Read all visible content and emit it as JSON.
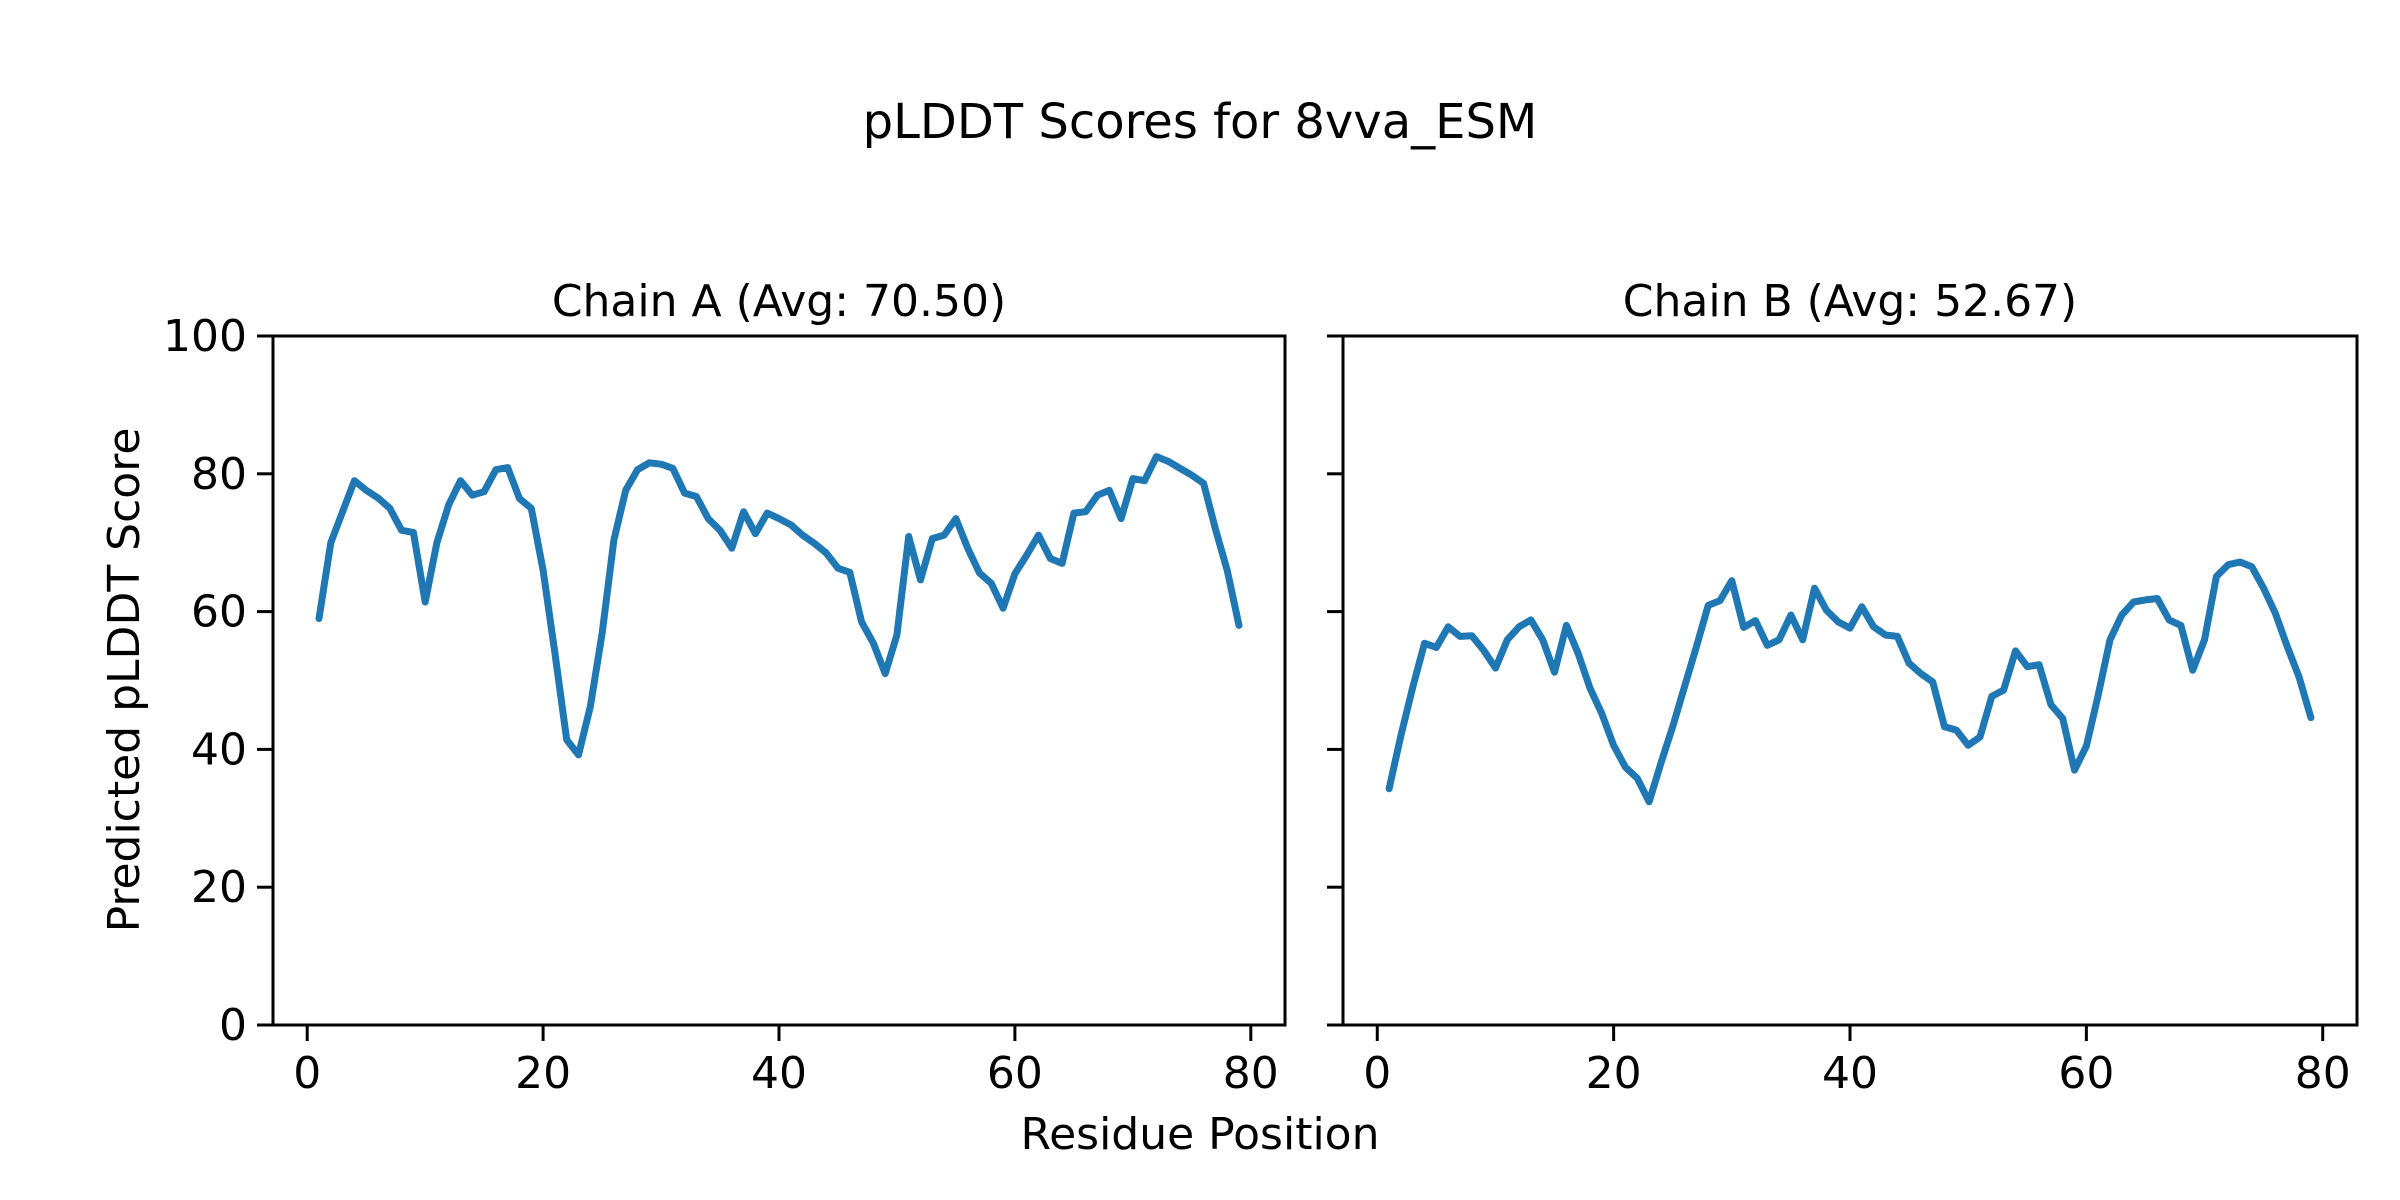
{
  "figure": {
    "title": "pLDDT Scores for 8vva_ESM",
    "xlabel": "Residue Position",
    "ylabel": "Predicted pLDDT Score",
    "background_color": "#ffffff",
    "text_color": "#000000"
  },
  "chart_data": [
    {
      "type": "line",
      "title": "Chain A (Avg: 70.50)",
      "chain": "A",
      "avg_plddt": 70.5,
      "line_color": "#1f77b4",
      "x_start": 1,
      "values": [
        59,
        70,
        74.5,
        79,
        77.6,
        76.5,
        75,
        71.8,
        71.5,
        61.4,
        70,
        75.5,
        79,
        76.9,
        77.4,
        80.6,
        80.9,
        76.4,
        75,
        66,
        54,
        41.4,
        39.2,
        46.2,
        56.8,
        70.4,
        77.6,
        80.6,
        81.6,
        81.4,
        80.8,
        77.2,
        76.7,
        73.5,
        71.8,
        69.2,
        74.5,
        71.3,
        74.3,
        73.5,
        72.6,
        71.1,
        69.9,
        68.5,
        66.3,
        65.7,
        58.5,
        55.4,
        51,
        56.6,
        70.9,
        64.6,
        70.6,
        71.1,
        73.5,
        69.2,
        65.6,
        64.1,
        60.5,
        65.5,
        68.2,
        71.1,
        67.7,
        67,
        74.3,
        74.5,
        76.9,
        77.6,
        73.5,
        79.3,
        79,
        82.5,
        81.8,
        80.8,
        79.8,
        78.6,
        72,
        66,
        58
      ],
      "xlim": [
        -2.9,
        82.9
      ],
      "ylim": [
        0,
        100
      ],
      "xticks": [
        0,
        20,
        40,
        60,
        80
      ],
      "yticks": [
        0,
        20,
        40,
        60,
        80,
        100
      ],
      "show_ytick_labels": true,
      "grid": false,
      "legend": "none"
    },
    {
      "type": "line",
      "title": "Chain B (Avg: 52.67)",
      "chain": "B",
      "avg_plddt": 52.67,
      "line_color": "#1f77b4",
      "x_start": 1,
      "values": [
        34.3,
        42,
        49,
        55.4,
        54.8,
        57.8,
        56.4,
        56.5,
        54.4,
        51.8,
        55.9,
        57.8,
        58.8,
        55.9,
        51.2,
        58,
        53.9,
        48.9,
        45.2,
        40.6,
        37.4,
        35.8,
        32.4,
        38,
        43.3,
        49.1,
        54.9,
        60.9,
        61.6,
        64.5,
        57.7,
        58.7,
        55.1,
        55.9,
        59.5,
        55.9,
        63.4,
        60.2,
        58.5,
        57.6,
        60.7,
        57.8,
        56.6,
        56.4,
        52.5,
        51,
        49.8,
        43.3,
        42.8,
        40.6,
        41.8,
        47.7,
        48.6,
        54.3,
        52,
        52.3,
        46.5,
        44.5,
        37,
        40.5,
        47.9,
        55.9,
        59.5,
        61.4,
        61.7,
        61.9,
        58.8,
        58,
        51.5,
        55.9,
        65.1,
        66.8,
        67.2,
        66.5,
        63.4,
        59.7,
        54.9,
        50.5,
        44.6
      ],
      "xlim": [
        -2.9,
        82.9
      ],
      "ylim": [
        0,
        100
      ],
      "xticks": [
        0,
        20,
        40,
        60,
        80
      ],
      "yticks": [
        0,
        20,
        40,
        60,
        80,
        100
      ],
      "show_ytick_labels": false,
      "grid": false,
      "legend": "none"
    }
  ]
}
